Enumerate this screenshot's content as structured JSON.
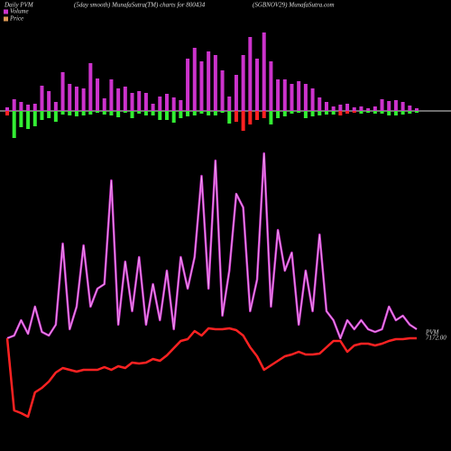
{
  "chart_data": {
    "type": "pvm",
    "title": "Daily PVM",
    "subtitle": "(5day smooth) MunafaSutra(TM) charts for 800434",
    "source": "(SGBNOV29) MunafaSutra.com",
    "bar_ylim": [
      -40,
      95
    ],
    "line_ylim": [
      0,
      340
    ],
    "bars_up": {
      "name": "Volume",
      "color": "#cc33cc",
      "values": [
        4,
        13,
        10,
        7,
        8,
        28,
        22,
        10,
        43,
        30,
        27,
        25,
        53,
        36,
        14,
        35,
        25,
        27,
        20,
        22,
        20,
        8,
        16,
        19,
        15,
        12,
        58,
        70,
        55,
        66,
        62,
        45,
        16,
        40,
        62,
        82,
        58,
        87,
        55,
        35,
        35,
        30,
        33,
        30,
        25,
        15,
        10,
        5,
        7,
        8,
        4,
        5,
        3,
        5,
        13,
        11,
        12,
        10,
        6,
        3
      ]
    },
    "bars_down": {
      "values": [
        -5,
        -30,
        -18,
        -20,
        -17,
        -10,
        -8,
        -12,
        -4,
        -5,
        -6,
        -5,
        -4,
        -2,
        -4,
        -5,
        -7,
        -2,
        -8,
        -3,
        -5,
        -5,
        -10,
        -10,
        -13,
        -8,
        -6,
        -5,
        -3,
        -5,
        -5,
        -2,
        -14,
        -12,
        -22,
        -15,
        -10,
        -8,
        -15,
        -8,
        -6,
        -3,
        -2,
        -8,
        -6,
        -5,
        -4,
        -4,
        -5,
        -3,
        -2,
        -3,
        -2,
        -3,
        -3,
        -5,
        -5,
        -4,
        -3,
        -2
      ],
      "colors": [
        "#ff2222",
        "#33ee33",
        "#33ee33",
        "#33ee33",
        "#33ee33",
        "#33ee33",
        "#33ee33",
        "#33ee33",
        "#33ee33",
        "#33ee33",
        "#33ee33",
        "#33ee33",
        "#33ee33",
        "#33ee33",
        "#33ee33",
        "#33ee33",
        "#33ee33",
        "#33ee33",
        "#33ee33",
        "#33ee33",
        "#33ee33",
        "#33ee33",
        "#33ee33",
        "#33ee33",
        "#33ee33",
        "#33ee33",
        "#33ee33",
        "#33ee33",
        "#33ee33",
        "#33ee33",
        "#33ee33",
        "#33ee33",
        "#33ee33",
        "#ff2222",
        "#ff2222",
        "#ff2222",
        "#ff2222",
        "#ff2222",
        "#33ee33",
        "#33ee33",
        "#33ee33",
        "#33ee33",
        "#33ee33",
        "#33ee33",
        "#33ee33",
        "#33ee33",
        "#33ee33",
        "#33ee33",
        "#ff2222",
        "#ff2222",
        "#ff2222",
        "#33ee33",
        "#33ee33",
        "#33ee33",
        "#33ee33",
        "#33ee33",
        "#33ee33",
        "#33ee33",
        "#33ee33",
        "#33ee33"
      ]
    },
    "series": [
      {
        "name": "PVM",
        "color": "#cc33cc",
        "values": [
          95,
          98,
          115,
          100,
          130,
          102,
          98,
          110,
          200,
          105,
          130,
          198,
          130,
          150,
          155,
          270,
          110,
          180,
          125,
          185,
          110,
          155,
          115,
          170,
          105,
          185,
          150,
          185,
          275,
          150,
          292,
          120,
          170,
          255,
          240,
          125,
          160,
          300,
          130,
          215,
          170,
          190,
          110,
          170,
          125,
          210,
          125,
          115,
          95,
          115,
          105,
          115,
          105,
          102,
          105,
          130,
          115,
          120,
          110,
          105
        ]
      },
      {
        "name": "Price",
        "color": "#ff2222",
        "values": [
          95,
          15,
          12,
          8,
          35,
          40,
          47,
          57,
          62,
          60,
          58,
          60,
          60,
          60,
          63,
          60,
          64,
          62,
          68,
          67,
          68,
          72,
          70,
          76,
          84,
          92,
          94,
          103,
          98,
          106,
          105,
          105,
          106,
          104,
          98,
          85,
          75,
          60,
          65,
          70,
          75,
          77,
          80,
          77,
          77,
          78,
          85,
          92,
          92,
          80,
          87,
          89,
          89,
          87,
          89,
          92,
          94,
          94,
          95,
          95
        ]
      }
    ],
    "price_legend_color": "#dd9955",
    "last_price_label": "7172.00"
  }
}
